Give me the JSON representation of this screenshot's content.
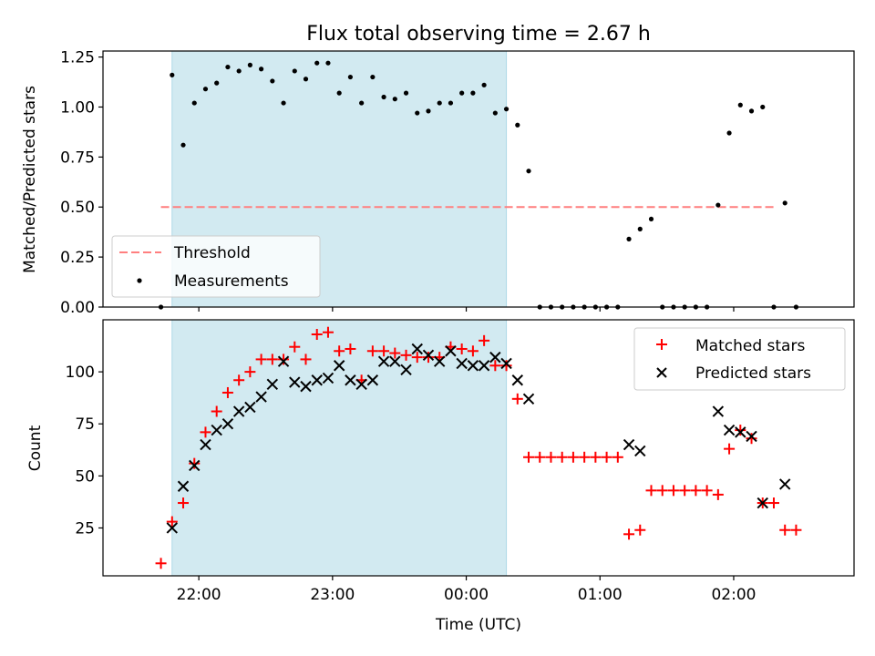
{
  "title": "Flux total observing time = 2.67 h",
  "colors": {
    "shade": "#add8e6",
    "threshold": "#ff7f7f",
    "matched": "#ff0000",
    "predicted": "#000000",
    "measurement": "#000000"
  },
  "chart_data": [
    {
      "type": "scatter",
      "ylabel": "Matched/Predicted stars",
      "ylim": [
        0,
        1.28
      ],
      "yticks": [
        0,
        0.25,
        0.5,
        0.75,
        1.0,
        1.25
      ],
      "ytick_labels": [
        "0.00",
        "0.25",
        "0.50",
        "0.75",
        "1.00",
        "1.25"
      ],
      "x_range": [
        "21:17",
        "02:54"
      ],
      "shaded_span": [
        "21:48",
        "00:18"
      ],
      "legend_position": "lower left",
      "threshold": {
        "name": "Threshold",
        "value": 0.5,
        "x_start": "21:43",
        "x_end": "02:19",
        "style": "dashed"
      },
      "series": [
        {
          "name": "Measurements",
          "points": [
            [
              "21:43",
              0.0
            ],
            [
              "21:48",
              1.16
            ],
            [
              "21:53",
              0.81
            ],
            [
              "21:58",
              1.02
            ],
            [
              "22:03",
              1.09
            ],
            [
              "22:08",
              1.12
            ],
            [
              "22:13",
              1.2
            ],
            [
              "22:18",
              1.18
            ],
            [
              "22:23",
              1.21
            ],
            [
              "22:28",
              1.19
            ],
            [
              "22:33",
              1.13
            ],
            [
              "22:38",
              1.02
            ],
            [
              "22:43",
              1.18
            ],
            [
              "22:48",
              1.14
            ],
            [
              "22:53",
              1.22
            ],
            [
              "22:58",
              1.22
            ],
            [
              "23:03",
              1.07
            ],
            [
              "23:08",
              1.15
            ],
            [
              "23:13",
              1.02
            ],
            [
              "23:18",
              1.15
            ],
            [
              "23:23",
              1.05
            ],
            [
              "23:28",
              1.04
            ],
            [
              "23:33",
              1.07
            ],
            [
              "23:38",
              0.97
            ],
            [
              "23:43",
              0.98
            ],
            [
              "23:48",
              1.02
            ],
            [
              "23:53",
              1.02
            ],
            [
              "23:58",
              1.07
            ],
            [
              "00:03",
              1.07
            ],
            [
              "00:08",
              1.11
            ],
            [
              "00:13",
              0.97
            ],
            [
              "00:18",
              0.99
            ],
            [
              "00:23",
              0.91
            ],
            [
              "00:28",
              0.68
            ],
            [
              "00:33",
              0.0
            ],
            [
              "00:38",
              0.0
            ],
            [
              "00:43",
              0.0
            ],
            [
              "00:48",
              0.0
            ],
            [
              "00:53",
              0.0
            ],
            [
              "00:58",
              0.0
            ],
            [
              "01:03",
              0.0
            ],
            [
              "01:08",
              0.0
            ],
            [
              "01:13",
              0.34
            ],
            [
              "01:18",
              0.39
            ],
            [
              "01:23",
              0.44
            ],
            [
              "01:28",
              0.0
            ],
            [
              "01:33",
              0.0
            ],
            [
              "01:38",
              0.0
            ],
            [
              "01:43",
              0.0
            ],
            [
              "01:48",
              0.0
            ],
            [
              "01:53",
              0.51
            ],
            [
              "01:58",
              0.87
            ],
            [
              "02:03",
              1.01
            ],
            [
              "02:08",
              0.98
            ],
            [
              "02:13",
              1.0
            ],
            [
              "02:18",
              0.0
            ],
            [
              "02:23",
              0.52
            ],
            [
              "02:28",
              0.0
            ]
          ]
        }
      ]
    },
    {
      "type": "scatter",
      "xlabel": "Time (UTC)",
      "ylabel": "Count",
      "ylim": [
        2,
        125
      ],
      "yticks": [
        25,
        50,
        75,
        100
      ],
      "ytick_labels": [
        "25",
        "50",
        "75",
        "100"
      ],
      "x_range": [
        "21:17",
        "02:54"
      ],
      "x_tick_labels": [
        "22:00",
        "23:00",
        "00:00",
        "01:00",
        "02:00"
      ],
      "shaded_span": [
        "21:48",
        "00:18"
      ],
      "legend_position": "upper right",
      "series": [
        {
          "name": "Matched stars",
          "marker": "plus",
          "points": [
            [
              "21:43",
              8
            ],
            [
              "21:48",
              28
            ],
            [
              "21:53",
              37
            ],
            [
              "21:58",
              56
            ],
            [
              "22:03",
              71
            ],
            [
              "22:08",
              81
            ],
            [
              "22:13",
              90
            ],
            [
              "22:18",
              96
            ],
            [
              "22:23",
              100
            ],
            [
              "22:28",
              106
            ],
            [
              "22:33",
              106
            ],
            [
              "22:38",
              106
            ],
            [
              "22:43",
              112
            ],
            [
              "22:48",
              106
            ],
            [
              "22:53",
              118
            ],
            [
              "22:58",
              119
            ],
            [
              "23:03",
              110
            ],
            [
              "23:08",
              111
            ],
            [
              "23:13",
              96
            ],
            [
              "23:18",
              110
            ],
            [
              "23:23",
              110
            ],
            [
              "23:28",
              109
            ],
            [
              "23:33",
              108
            ],
            [
              "23:38",
              107
            ],
            [
              "23:43",
              107
            ],
            [
              "23:48",
              107
            ],
            [
              "23:53",
              112
            ],
            [
              "23:58",
              111
            ],
            [
              "00:03",
              110
            ],
            [
              "00:08",
              115
            ],
            [
              "00:13",
              103
            ],
            [
              "00:18",
              103
            ],
            [
              "00:23",
              87
            ],
            [
              "00:28",
              59
            ],
            [
              "00:33",
              59
            ],
            [
              "00:38",
              59
            ],
            [
              "00:43",
              59
            ],
            [
              "00:48",
              59
            ],
            [
              "00:53",
              59
            ],
            [
              "00:58",
              59
            ],
            [
              "01:03",
              59
            ],
            [
              "01:08",
              59
            ],
            [
              "01:13",
              22
            ],
            [
              "01:18",
              24
            ],
            [
              "01:23",
              43
            ],
            [
              "01:28",
              43
            ],
            [
              "01:33",
              43
            ],
            [
              "01:38",
              43
            ],
            [
              "01:43",
              43
            ],
            [
              "01:48",
              43
            ],
            [
              "01:53",
              41
            ],
            [
              "01:58",
              63
            ],
            [
              "02:03",
              72
            ],
            [
              "02:08",
              68
            ],
            [
              "02:13",
              37
            ],
            [
              "02:18",
              37
            ],
            [
              "02:23",
              24
            ],
            [
              "02:28",
              24
            ]
          ]
        },
        {
          "name": "Predicted stars",
          "marker": "x",
          "points": [
            [
              "21:48",
              25
            ],
            [
              "21:53",
              45
            ],
            [
              "21:58",
              55
            ],
            [
              "22:03",
              65
            ],
            [
              "22:08",
              72
            ],
            [
              "22:13",
              75
            ],
            [
              "22:18",
              81
            ],
            [
              "22:23",
              83
            ],
            [
              "22:28",
              88
            ],
            [
              "22:33",
              94
            ],
            [
              "22:38",
              105
            ],
            [
              "22:43",
              95
            ],
            [
              "22:48",
              93
            ],
            [
              "22:53",
              96
            ],
            [
              "22:58",
              97
            ],
            [
              "23:03",
              103
            ],
            [
              "23:08",
              96
            ],
            [
              "23:13",
              94
            ],
            [
              "23:18",
              96
            ],
            [
              "23:23",
              105
            ],
            [
              "23:28",
              105
            ],
            [
              "23:33",
              101
            ],
            [
              "23:38",
              111
            ],
            [
              "23:43",
              108
            ],
            [
              "23:48",
              105
            ],
            [
              "23:53",
              110
            ],
            [
              "23:58",
              104
            ],
            [
              "00:03",
              103
            ],
            [
              "00:08",
              103
            ],
            [
              "00:13",
              107
            ],
            [
              "00:18",
              104
            ],
            [
              "00:23",
              96
            ],
            [
              "00:28",
              87
            ],
            [
              "01:13",
              65
            ],
            [
              "01:18",
              62
            ],
            [
              "01:53",
              81
            ],
            [
              "01:58",
              72
            ],
            [
              "02:03",
              71
            ],
            [
              "02:08",
              69
            ],
            [
              "02:13",
              37
            ],
            [
              "02:23",
              46
            ]
          ]
        }
      ]
    }
  ]
}
